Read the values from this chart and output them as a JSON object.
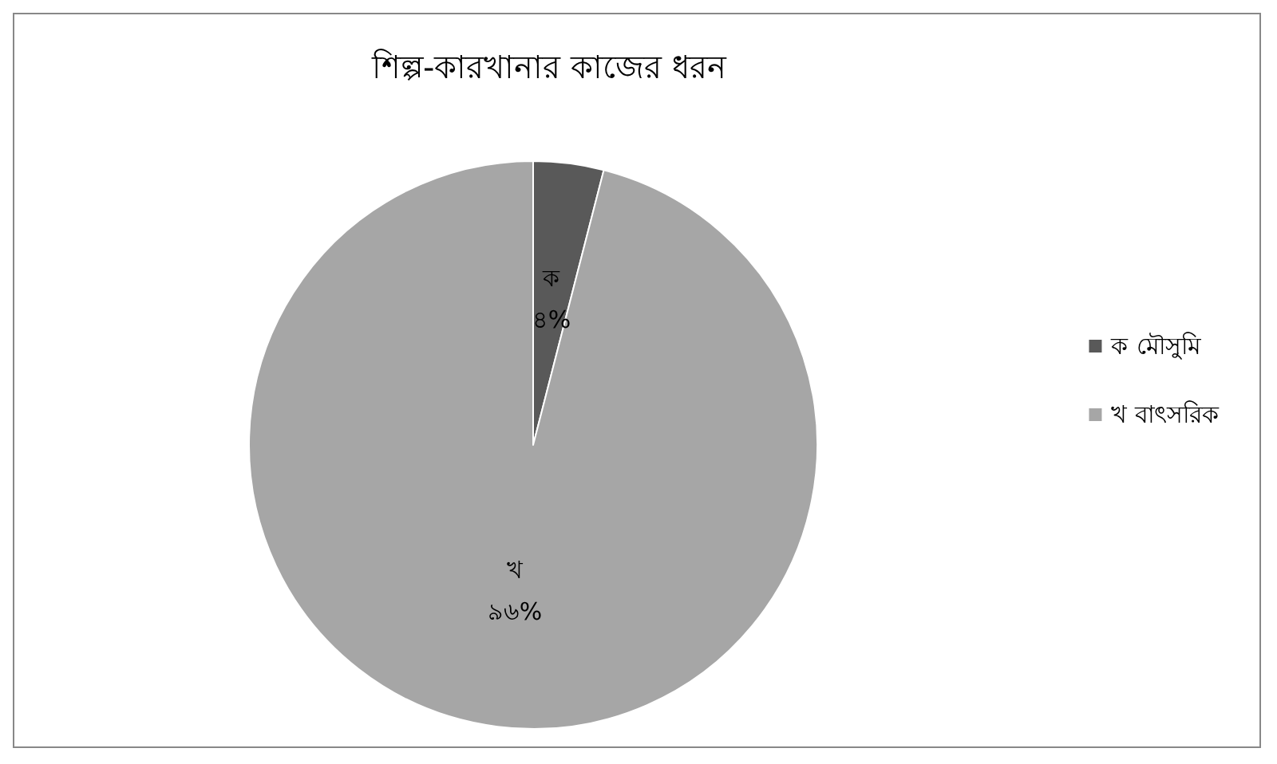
{
  "chart_data": {
    "type": "pie",
    "title": "শিল্প-কারখানার কাজের ধরন",
    "categories": [
      "ক মৌসুমি",
      "খ বাৎসরিক"
    ],
    "values": [
      4,
      96
    ],
    "colors": [
      "#595959",
      "#a6a6a6"
    ],
    "value_labels": [
      "ক\n৪%",
      "খ\n৯৬%"
    ],
    "legend": "right"
  }
}
